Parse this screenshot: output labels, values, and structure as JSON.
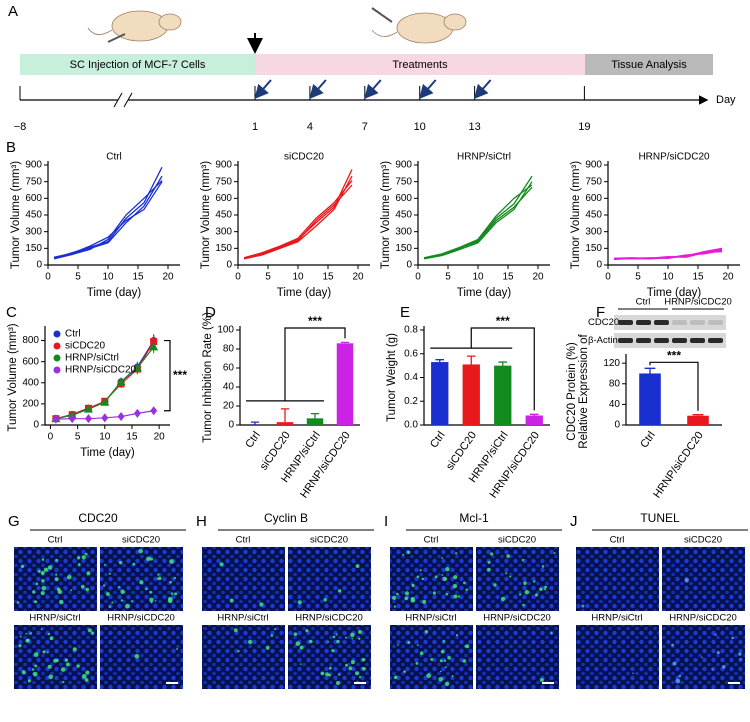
{
  "timeline": {
    "panel_label": "A",
    "phases": [
      "SC Injection of MCF-7 Cells",
      "Treatments",
      "Tissue Analysis"
    ],
    "axis_label": "Day",
    "ticks": [
      {
        "value": -8,
        "label": "−8"
      },
      1,
      4,
      7,
      10,
      13,
      19
    ],
    "injections": [
      1,
      4,
      7,
      10,
      13
    ]
  },
  "chart_data": [
    {
      "type": "line",
      "panel_label": "B",
      "title": "Ctrl",
      "xlabel": "Time (day)",
      "ylabel": "Tumor Volume (mm³)",
      "x": [
        1,
        4,
        7,
        10,
        13,
        16,
        19
      ],
      "xlim": [
        0,
        22
      ],
      "xticks": [
        0,
        5,
        10,
        15,
        20
      ],
      "ylim": [
        0,
        900
      ],
      "yticks": [
        0,
        150,
        300,
        450,
        600,
        750,
        900
      ],
      "series": [
        {
          "color": "#1a2fd0",
          "values": [
            60,
            110,
            160,
            210,
            420,
            560,
            880
          ]
        },
        {
          "color": "#1a2fd0",
          "values": [
            65,
            100,
            150,
            200,
            380,
            530,
            800
          ]
        },
        {
          "color": "#1a2fd0",
          "values": [
            55,
            95,
            140,
            230,
            450,
            600,
            760
          ]
        },
        {
          "color": "#1a2fd0",
          "values": [
            70,
            105,
            170,
            250,
            400,
            500,
            750
          ]
        }
      ]
    },
    {
      "type": "line",
      "title": "siCDC20",
      "xlabel": "Time (day)",
      "ylabel": "Tumor Volume (mm³)",
      "x": [
        1,
        4,
        7,
        10,
        13,
        16,
        19
      ],
      "xlim": [
        0,
        22
      ],
      "xticks": [
        0,
        5,
        10,
        15,
        20
      ],
      "ylim": [
        0,
        900
      ],
      "yticks": [
        0,
        150,
        300,
        450,
        600,
        750,
        900
      ],
      "series": [
        {
          "color": "#e8181c",
          "values": [
            60,
            100,
            160,
            230,
            380,
            520,
            860
          ]
        },
        {
          "color": "#e8181c",
          "values": [
            55,
            90,
            150,
            210,
            350,
            500,
            800
          ]
        },
        {
          "color": "#e8181c",
          "values": [
            65,
            110,
            170,
            240,
            420,
            560,
            760
          ]
        },
        {
          "color": "#e8181c",
          "values": [
            60,
            95,
            155,
            220,
            400,
            540,
            720
          ]
        }
      ]
    },
    {
      "type": "line",
      "title": "HRNP/siCtrl",
      "xlabel": "Time (day)",
      "ylabel": "Tumor Volume (mm³)",
      "x": [
        1,
        4,
        7,
        10,
        13,
        16,
        19
      ],
      "xlim": [
        0,
        22
      ],
      "xticks": [
        0,
        5,
        10,
        15,
        20
      ],
      "ylim": [
        0,
        900
      ],
      "yticks": [
        0,
        150,
        300,
        450,
        600,
        750,
        900
      ],
      "series": [
        {
          "color": "#138a1e",
          "values": [
            60,
            90,
            150,
            220,
            420,
            550,
            800
          ]
        },
        {
          "color": "#138a1e",
          "values": [
            55,
            85,
            140,
            200,
            380,
            500,
            750
          ]
        },
        {
          "color": "#138a1e",
          "values": [
            65,
            100,
            160,
            230,
            440,
            600,
            720
          ]
        },
        {
          "color": "#138a1e",
          "values": [
            60,
            95,
            155,
            210,
            400,
            520,
            700
          ]
        }
      ]
    },
    {
      "type": "line",
      "title": "HRNP/siCDC20",
      "xlabel": "Time (day)",
      "ylabel": "Tumor Volume (mm³)",
      "x": [
        1,
        4,
        7,
        10,
        13,
        16,
        19
      ],
      "xlim": [
        0,
        22
      ],
      "xticks": [
        0,
        5,
        10,
        15,
        20
      ],
      "ylim": [
        0,
        900
      ],
      "yticks": [
        0,
        150,
        300,
        450,
        600,
        750,
        900
      ],
      "series": [
        {
          "color": "#e81ad8",
          "values": [
            60,
            55,
            60,
            70,
            80,
            120,
            150
          ]
        },
        {
          "color": "#e81ad8",
          "values": [
            55,
            60,
            55,
            65,
            90,
            100,
            130
          ]
        },
        {
          "color": "#e81ad8",
          "values": [
            60,
            65,
            60,
            75,
            70,
            110,
            140
          ]
        },
        {
          "color": "#e81ad8",
          "values": [
            50,
            60,
            65,
            60,
            85,
            115,
            120
          ]
        }
      ]
    },
    {
      "type": "errline",
      "panel_label": "C",
      "xlabel": "Time (day)",
      "ylabel": "Tumor Volume (mm³)",
      "annotation": "***",
      "x": [
        1,
        4,
        7,
        10,
        13,
        16,
        19
      ],
      "xlim": [
        -1,
        22
      ],
      "xticks": [
        0,
        5,
        10,
        15,
        20
      ],
      "ylim": [
        0,
        900
      ],
      "yticks": [
        0,
        200,
        400,
        600,
        800
      ],
      "series": [
        {
          "name": "Ctrl",
          "color": "#1a2fd0",
          "marker": "circle",
          "values": [
            60,
            100,
            160,
            220,
            410,
            550,
            800
          ],
          "errors": [
            8,
            12,
            20,
            25,
            40,
            50,
            60
          ]
        },
        {
          "name": "siCDC20",
          "color": "#e8181c",
          "marker": "square",
          "values": [
            60,
            98,
            158,
            225,
            390,
            530,
            790
          ],
          "errors": [
            8,
            12,
            20,
            25,
            40,
            50,
            60
          ]
        },
        {
          "name": "HRNP/siCtrl",
          "color": "#138a1e",
          "marker": "triangle",
          "values": [
            60,
            92,
            150,
            215,
            410,
            540,
            740
          ],
          "errors": [
            8,
            12,
            20,
            25,
            40,
            50,
            60
          ]
        },
        {
          "name": "HRNP/siCDC20",
          "color": "#9b30e0",
          "marker": "diamond",
          "values": [
            56,
            60,
            60,
            68,
            80,
            110,
            135
          ],
          "errors": [
            5,
            6,
            6,
            8,
            10,
            12,
            15
          ]
        }
      ]
    },
    {
      "type": "bar",
      "panel_label": "D",
      "ylabel": "Tumor Inhibition Rate (%)",
      "annotation": "***",
      "categories": [
        "Ctrl",
        "siCDC20",
        "HRNP/siCtrl",
        "HRNP/siCDC20"
      ],
      "values": [
        0,
        3,
        7,
        86
      ],
      "errors": [
        3,
        14,
        5,
        1
      ],
      "colors": [
        "#1a2fd0",
        "#e8181c",
        "#138a1e",
        "#cc22e6"
      ],
      "ylim": [
        0,
        100
      ],
      "yticks": [
        0,
        20,
        40,
        60,
        80,
        100
      ]
    },
    {
      "type": "bar",
      "panel_label": "E",
      "ylabel": "Tumor Weight (g)",
      "annotation": "***",
      "categories": [
        "Ctrl",
        "siCDC20",
        "HRNP/siCtrl",
        "HRNP/siCDC20"
      ],
      "values": [
        0.53,
        0.51,
        0.5,
        0.08
      ],
      "errors": [
        0.02,
        0.07,
        0.03,
        0.01
      ],
      "colors": [
        "#1a2fd0",
        "#e8181c",
        "#138a1e",
        "#cc22e6"
      ],
      "ylim": [
        0,
        0.8
      ],
      "yticks": [
        {
          "value": 0,
          "label": "0.0"
        },
        0.2,
        0.4,
        0.6,
        0.8
      ]
    },
    {
      "type": "bar",
      "panel_label": "F",
      "ylabel": [
        "Relative Expression of",
        "CDC20 Protein (%)"
      ],
      "annotation": "***",
      "blot": {
        "groups": [
          "Ctrl",
          "HRNP/siCDC20"
        ],
        "rows": [
          "CDC20",
          "β-Actin"
        ]
      },
      "categories": [
        "Ctrl",
        "HRNP/siCDC20"
      ],
      "values": [
        100,
        18
      ],
      "errors": [
        10,
        2
      ],
      "colors": [
        "#1a2fd0",
        "#e8181c"
      ],
      "ylim": [
        0,
        130
      ],
      "yticks": [
        0,
        40,
        80,
        120
      ]
    }
  ],
  "micrographs": [
    {
      "panel_label": "G",
      "title": "CDC20",
      "labels": [
        "Ctrl",
        "siCDC20",
        "HRNP/siCtrl",
        "HRNP/siCDC20"
      ]
    },
    {
      "panel_label": "H",
      "title": "Cyclin B",
      "labels": [
        "Ctrl",
        "siCDC20",
        "HRNP/siCtrl",
        "HRNP/siCDC20"
      ]
    },
    {
      "panel_label": "I",
      "title": "Mcl-1",
      "labels": [
        "Ctrl",
        "siCDC20",
        "HRNP/siCtrl",
        "HRNP/siCDC20"
      ]
    },
    {
      "panel_label": "J",
      "title": "TUNEL",
      "labels": [
        "Ctrl",
        "siCDC20",
        "HRNP/siCtrl",
        "HRNP/siCDC20"
      ]
    }
  ]
}
